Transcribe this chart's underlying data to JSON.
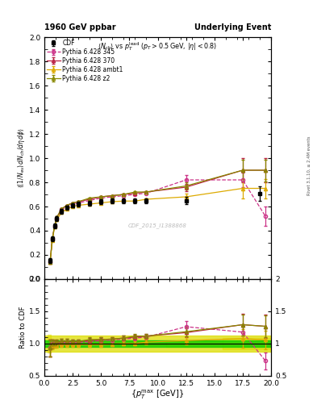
{
  "title_left": "1960 GeV ppbar",
  "title_right": "Underlying Event",
  "subtitle": "<N_{ch}> vs p_{T}^{lead} (p_{T} > 0.5 GeV, |#eta| < 0.8)",
  "ylabel_main": "((1/N_{events}) dN_{ch}/d#eta, d#phi)",
  "ylabel_ratio": "Ratio to CDF",
  "xlabel": "{p_{T}^{max} [GeV]}",
  "right_label": "Rivet 3.1.10, ≥ 2.4M events",
  "watermark": "CDF_2015_I1388868",
  "xlim": [
    0,
    20
  ],
  "ylim_main": [
    0.0,
    2.0
  ],
  "ylim_ratio": [
    0.5,
    2.0
  ],
  "cdf_x": [
    0.5,
    0.7,
    0.9,
    1.1,
    1.5,
    2.0,
    2.5,
    3.0,
    4.0,
    5.0,
    6.0,
    7.0,
    8.0,
    9.0,
    12.5,
    19.0
  ],
  "cdf_y": [
    0.15,
    0.33,
    0.44,
    0.5,
    0.56,
    0.59,
    0.61,
    0.62,
    0.63,
    0.64,
    0.645,
    0.645,
    0.645,
    0.645,
    0.65,
    0.71
  ],
  "cdf_yerr": [
    0.02,
    0.02,
    0.02,
    0.02,
    0.02,
    0.02,
    0.02,
    0.02,
    0.02,
    0.02,
    0.02,
    0.02,
    0.02,
    0.02,
    0.03,
    0.06
  ],
  "p345_x": [
    0.5,
    0.7,
    0.9,
    1.1,
    1.5,
    2.0,
    2.5,
    3.0,
    4.0,
    5.0,
    6.0,
    7.0,
    8.0,
    9.0,
    12.5,
    17.5,
    19.5
  ],
  "p345_y": [
    0.14,
    0.33,
    0.44,
    0.5,
    0.57,
    0.6,
    0.62,
    0.63,
    0.65,
    0.67,
    0.68,
    0.69,
    0.7,
    0.71,
    0.82,
    0.82,
    0.52
  ],
  "p345_yerr": [
    0.005,
    0.005,
    0.005,
    0.005,
    0.005,
    0.005,
    0.005,
    0.005,
    0.005,
    0.005,
    0.005,
    0.005,
    0.005,
    0.005,
    0.04,
    0.06,
    0.08
  ],
  "p370_x": [
    0.5,
    0.7,
    0.9,
    1.1,
    1.5,
    2.0,
    2.5,
    3.0,
    4.0,
    5.0,
    6.0,
    7.0,
    8.0,
    9.0,
    12.5,
    17.5,
    19.5
  ],
  "p370_y": [
    0.14,
    0.33,
    0.44,
    0.51,
    0.58,
    0.61,
    0.63,
    0.64,
    0.66,
    0.68,
    0.69,
    0.7,
    0.71,
    0.72,
    0.76,
    0.9,
    0.9
  ],
  "p370_yerr": [
    0.005,
    0.005,
    0.005,
    0.005,
    0.005,
    0.005,
    0.005,
    0.005,
    0.005,
    0.005,
    0.005,
    0.005,
    0.005,
    0.005,
    0.03,
    0.1,
    0.1
  ],
  "pambt_x": [
    0.5,
    0.7,
    0.9,
    1.1,
    1.5,
    2.0,
    2.5,
    3.0,
    4.0,
    5.0,
    6.0,
    7.0,
    8.0,
    9.0,
    12.5,
    17.5,
    19.5
  ],
  "pambt_y": [
    0.14,
    0.32,
    0.43,
    0.49,
    0.55,
    0.58,
    0.6,
    0.61,
    0.62,
    0.63,
    0.64,
    0.645,
    0.645,
    0.66,
    0.68,
    0.75,
    0.75
  ],
  "pambt_yerr": [
    0.005,
    0.005,
    0.005,
    0.005,
    0.005,
    0.005,
    0.005,
    0.005,
    0.005,
    0.005,
    0.005,
    0.005,
    0.005,
    0.005,
    0.025,
    0.08,
    0.08
  ],
  "pz2_x": [
    0.5,
    0.7,
    0.9,
    1.1,
    1.5,
    2.0,
    2.5,
    3.0,
    4.0,
    5.0,
    6.0,
    7.0,
    8.0,
    9.0,
    12.5,
    17.5,
    19.5
  ],
  "pz2_y": [
    0.14,
    0.33,
    0.44,
    0.51,
    0.58,
    0.61,
    0.63,
    0.64,
    0.67,
    0.68,
    0.69,
    0.7,
    0.72,
    0.72,
    0.77,
    0.9,
    0.9
  ],
  "pz2_yerr": [
    0.005,
    0.005,
    0.005,
    0.005,
    0.005,
    0.005,
    0.005,
    0.005,
    0.005,
    0.005,
    0.005,
    0.005,
    0.005,
    0.005,
    0.03,
    0.09,
    0.09
  ],
  "cdf_color": "#000000",
  "p345_color": "#cc3388",
  "p370_color": "#bb2244",
  "pambt_color": "#ddaa00",
  "pz2_color": "#888800",
  "band_green_inner": 0.05,
  "band_yellow_outer": 0.12,
  "band_green_color": "#00cc00",
  "band_yellow_color": "#dddd00"
}
